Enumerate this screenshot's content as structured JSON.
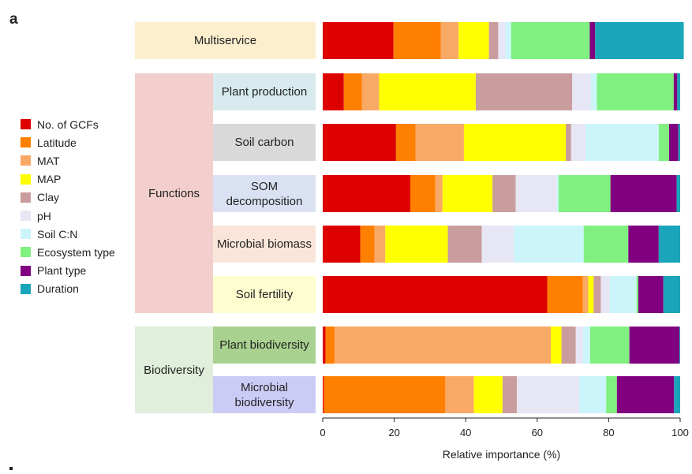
{
  "panel_letter": "a",
  "chart_data": {
    "type": "bar",
    "stacked": true,
    "orientation": "horizontal",
    "xlabel": "Relative importance (%)",
    "xlim": [
      0,
      100
    ],
    "xticks": [
      "0",
      "20",
      "40",
      "60",
      "80",
      "100"
    ],
    "groups": [
      {
        "name": "",
        "categories": [
          "Multiservice"
        ]
      },
      {
        "name": "Functions",
        "categories": [
          "Plant production",
          "Soil carbon",
          "SOM decomposition",
          "Microbial biomass",
          "Soil fertility"
        ]
      },
      {
        "name": "Biodiversity",
        "categories": [
          "Plant biodiversity",
          "Microbial biodiversity"
        ]
      }
    ],
    "categories": [
      "Multiservice",
      "Plant production",
      "Soil carbon",
      "SOM decomposition",
      "Microbial biomass",
      "Soil fertility",
      "Plant biodiversity",
      "Microbial biodiversity"
    ],
    "series": [
      {
        "name": "No. of GCFs",
        "color": "#dd0000",
        "values": [
          19.8,
          5.9,
          20.5,
          24.5,
          10.5,
          62.8,
          0.8,
          0.3
        ]
      },
      {
        "name": "Latitude",
        "color": "#ff7f00",
        "values": [
          13.2,
          5.1,
          5.5,
          7.0,
          4.0,
          10.0,
          2.5,
          34.0
        ]
      },
      {
        "name": "MAT",
        "color": "#f9a966",
        "values": [
          5.0,
          4.8,
          13.5,
          2.0,
          3.0,
          1.5,
          60.5,
          8.0
        ]
      },
      {
        "name": "MAP",
        "color": "#ffff00",
        "values": [
          8.5,
          27.0,
          28.5,
          14.0,
          17.5,
          1.5,
          3.0,
          8.0
        ]
      },
      {
        "name": "Clay",
        "color": "#c99d9d",
        "values": [
          2.6,
          27.0,
          1.5,
          6.5,
          9.5,
          2.0,
          4.0,
          4.0
        ]
      },
      {
        "name": "pH",
        "color": "#e7e6f5",
        "values": [
          2.0,
          5.2,
          4.0,
          11.5,
          9.0,
          2.5,
          2.0,
          17.5
        ]
      },
      {
        "name": "Soil C:N",
        "color": "#ccf5fb",
        "values": [
          1.6,
          1.7,
          20.5,
          0.5,
          19.5,
          7.5,
          2.0,
          7.5
        ]
      },
      {
        "name": "Ecosystem type",
        "color": "#80f080",
        "values": [
          22.0,
          21.5,
          2.9,
          14.5,
          12.5,
          0.5,
          11.0,
          3.0
        ]
      },
      {
        "name": "Plant type",
        "color": "#800080",
        "values": [
          1.5,
          1.0,
          2.6,
          18.5,
          8.5,
          7.0,
          14.0,
          16.0
        ]
      },
      {
        "name": "Duration",
        "color": "#1aa5ba",
        "values": [
          24.8,
          0.8,
          0.5,
          1.0,
          6.0,
          4.7,
          0.2,
          1.7
        ]
      }
    ],
    "category_colors": {
      "Multiservice": "#fdefce",
      "Plant production": "#d7ebee",
      "Soil carbon": "#d9d9d9",
      "SOM decomposition": "#d9e1f3",
      "Microbial biomass": "#fae6d9",
      "Soil fertility": "#fdfdd0",
      "Plant biodiversity": "#a9d18f",
      "Microbial biodiversity": "#cbcbf6"
    },
    "group_colors": {
      "Functions": "#f2cfcc",
      "Biodiversity": "#e0eedb"
    },
    "legend_position": "left"
  }
}
